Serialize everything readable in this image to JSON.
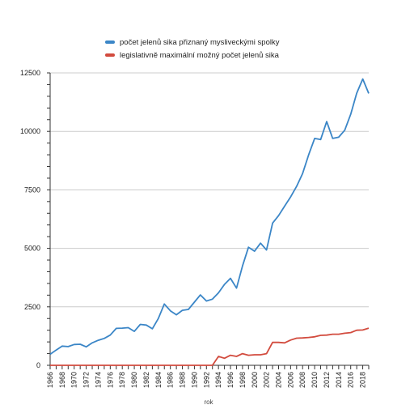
{
  "chart_data": {
    "type": "line",
    "xlabel": "rok",
    "ylabel": "",
    "ylim": [
      0,
      12500
    ],
    "yticks": [
      0,
      2500,
      5000,
      7500,
      10000,
      12500
    ],
    "xticks": [
      1966,
      1968,
      1970,
      1972,
      1974,
      1976,
      1978,
      1980,
      1982,
      1984,
      1986,
      1988,
      1990,
      1992,
      1994,
      1996,
      1998,
      2000,
      2002,
      2004,
      2006,
      2008,
      2010,
      2012,
      2014,
      2016,
      2018
    ],
    "xlim": [
      1966,
      2019
    ],
    "grid": "horizontal",
    "legend_position": "top",
    "series": [
      {
        "name": "počet jelenů sika přiznaný mysliveckými spolky",
        "color": "#3b86c7",
        "x": [
          1966,
          1967,
          1968,
          1969,
          1970,
          1971,
          1972,
          1973,
          1974,
          1975,
          1976,
          1977,
          1978,
          1979,
          1980,
          1981,
          1982,
          1983,
          1984,
          1985,
          1986,
          1987,
          1988,
          1989,
          1990,
          1991,
          1992,
          1993,
          1994,
          1995,
          1996,
          1997,
          1998,
          1999,
          2000,
          2001,
          2002,
          2003,
          2004,
          2005,
          2006,
          2007,
          2008,
          2009,
          2010,
          2011,
          2012,
          2013,
          2014,
          2015,
          2016,
          2017,
          2018,
          2019
        ],
        "values": [
          470,
          650,
          820,
          800,
          890,
          900,
          790,
          960,
          1070,
          1150,
          1290,
          1580,
          1590,
          1610,
          1450,
          1750,
          1720,
          1560,
          2000,
          2620,
          2330,
          2160,
          2350,
          2390,
          2700,
          3010,
          2750,
          2830,
          3100,
          3460,
          3720,
          3300,
          4250,
          5050,
          4880,
          5220,
          4930,
          6080,
          6400,
          6800,
          7200,
          7650,
          8200,
          9000,
          9700,
          9650,
          10420,
          9700,
          9750,
          10050,
          10730,
          11630,
          12240,
          11620
        ]
      },
      {
        "name": "legislativně maximální možný počet jelenů sika",
        "color": "#d24b3e",
        "x": [
          1966,
          1967,
          1968,
          1969,
          1970,
          1971,
          1972,
          1973,
          1974,
          1975,
          1976,
          1977,
          1978,
          1979,
          1980,
          1981,
          1982,
          1983,
          1984,
          1985,
          1986,
          1987,
          1988,
          1989,
          1990,
          1991,
          1992,
          1993,
          1994,
          1995,
          1996,
          1997,
          1998,
          1999,
          2000,
          2001,
          2002,
          2003,
          2004,
          2005,
          2006,
          2007,
          2008,
          2009,
          2010,
          2011,
          2012,
          2013,
          2014,
          2015,
          2016,
          2017,
          2018,
          2019
        ],
        "values": [
          0,
          0,
          0,
          0,
          0,
          0,
          0,
          0,
          0,
          0,
          0,
          0,
          0,
          0,
          0,
          0,
          0,
          0,
          0,
          0,
          0,
          0,
          0,
          0,
          0,
          0,
          0,
          0,
          380,
          300,
          430,
          380,
          500,
          430,
          450,
          450,
          500,
          980,
          980,
          960,
          1080,
          1160,
          1170,
          1190,
          1220,
          1280,
          1290,
          1330,
          1330,
          1370,
          1400,
          1500,
          1510,
          1590
        ]
      }
    ]
  }
}
